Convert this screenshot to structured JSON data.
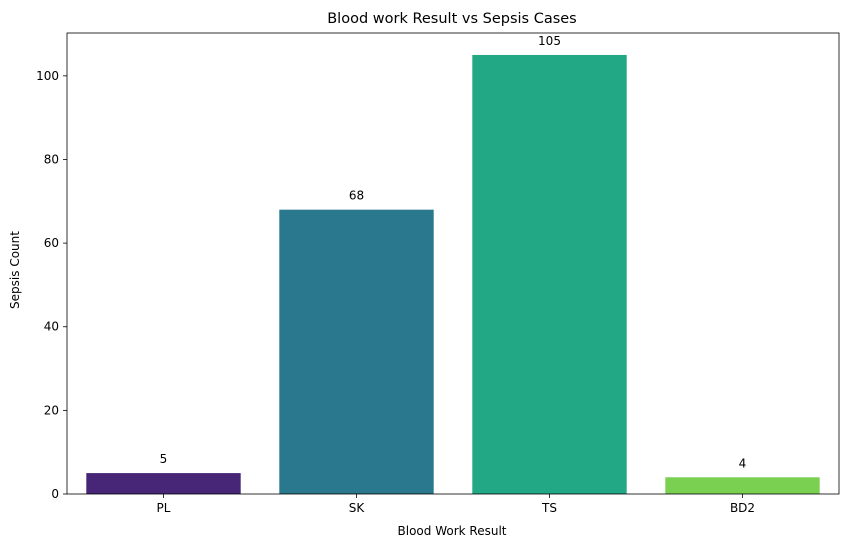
{
  "chart_data": {
    "type": "bar",
    "title": "Blood work Result vs Sepsis Cases",
    "xlabel": "Blood Work Result",
    "ylabel": "Sepsis Count",
    "categories": [
      "PL",
      "SK",
      "TS",
      "BD2"
    ],
    "values": [
      5,
      68,
      105,
      4
    ],
    "data_labels": [
      "5",
      "68",
      "105",
      "4"
    ],
    "colors": [
      "#482677",
      "#2a788e",
      "#22a884",
      "#7ad151"
    ],
    "ylim": [
      0,
      110.25
    ],
    "yticks": [
      0,
      20,
      40,
      60,
      80,
      100
    ],
    "grid": false,
    "legend": "none"
  }
}
